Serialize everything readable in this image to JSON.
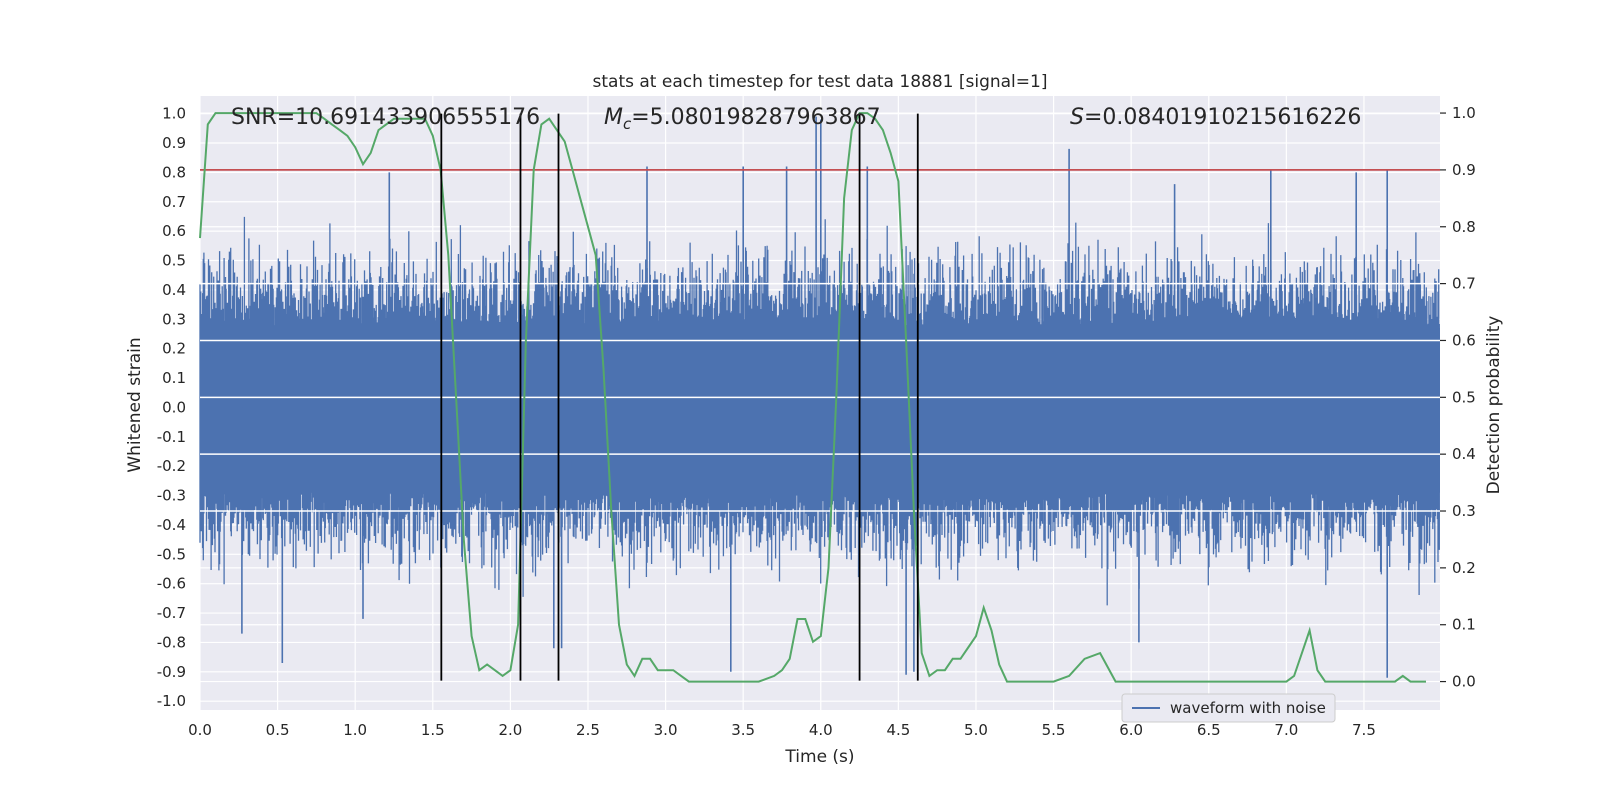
{
  "chart_data": {
    "type": "line",
    "title": "stats at each timestep for test data 18881 [signal=1]",
    "xlabel": "Time (s)",
    "ylabel": "Whitened strain",
    "y2label": "Detection probability",
    "xlim": [
      0.0,
      7.99
    ],
    "ylim": [
      -1.03,
      1.06
    ],
    "y2lim": [
      -0.05,
      1.03
    ],
    "xticks": [
      "0.0",
      "0.5",
      "1.0",
      "1.5",
      "2.0",
      "2.5",
      "3.0",
      "3.5",
      "4.0",
      "4.5",
      "5.0",
      "5.5",
      "6.0",
      "6.5",
      "7.0",
      "7.5"
    ],
    "yticks": [
      "1.0",
      "0.9",
      "0.8",
      "0.7",
      "0.6",
      "0.5",
      "0.4",
      "0.3",
      "0.2",
      "0.1",
      "0.0",
      "-0.1",
      "-0.2",
      "-0.3",
      "-0.4",
      "-0.5",
      "-0.6",
      "-0.7",
      "-0.8",
      "-0.9",
      "-1.0"
    ],
    "y2ticks": [
      "1.0",
      "0.9",
      "0.8",
      "0.7",
      "0.6",
      "0.5",
      "0.4",
      "0.3",
      "0.2",
      "0.1",
      "0.0"
    ],
    "grid": true,
    "background": "#eaeaf2",
    "annotations": {
      "snr": "SNR=10.691433906555176",
      "mc_symbol": "M",
      "mc_sub": "c",
      "mc_value": "=5.080198287963867",
      "s_symbol": "S",
      "s_value": "=0.08401910215616226"
    },
    "legend": {
      "label": "waveform with noise",
      "placement": "lower-right"
    },
    "waveform": {
      "name": "waveform with noise",
      "color": "#4c72b0",
      "note": "dense whitened-strain noise, core band about ±0.25, peaks near ±0.6, spikes to about +1.0 and -0.9",
      "spikes_up": [
        [
          3.97,
          0.99
        ],
        [
          4.0,
          0.98
        ],
        [
          5.6,
          0.88
        ],
        [
          1.22,
          0.8
        ],
        [
          2.88,
          0.82
        ],
        [
          3.5,
          0.82
        ],
        [
          3.78,
          0.82
        ],
        [
          4.3,
          0.82
        ],
        [
          6.9,
          0.81
        ],
        [
          7.65,
          0.81
        ],
        [
          6.28,
          0.76
        ],
        [
          7.45,
          0.8
        ]
      ],
      "spikes_down": [
        [
          0.53,
          -0.87
        ],
        [
          2.28,
          -0.82
        ],
        [
          2.33,
          -0.82
        ],
        [
          3.42,
          -0.9
        ],
        [
          4.55,
          -0.91
        ],
        [
          4.6,
          -0.9
        ],
        [
          7.65,
          -0.92
        ],
        [
          0.27,
          -0.77
        ],
        [
          1.05,
          -0.72
        ],
        [
          6.05,
          -0.8
        ]
      ]
    },
    "threshold": {
      "value": 0.9,
      "axis": "y2",
      "color": "#c44e52"
    },
    "probability": {
      "name": "detection probability",
      "color": "#55a868",
      "x": [
        0.0,
        0.05,
        0.1,
        0.15,
        0.2,
        0.3,
        0.4,
        0.5,
        0.6,
        0.7,
        0.75,
        0.8,
        0.85,
        0.9,
        0.95,
        1.0,
        1.05,
        1.1,
        1.15,
        1.2,
        1.25,
        1.3,
        1.35,
        1.4,
        1.45,
        1.5,
        1.55,
        1.6,
        1.65,
        1.7,
        1.75,
        1.8,
        1.85,
        1.9,
        1.95,
        2.0,
        2.05,
        2.1,
        2.15,
        2.2,
        2.25,
        2.3,
        2.35,
        2.4,
        2.45,
        2.5,
        2.55,
        2.6,
        2.65,
        2.7,
        2.75,
        2.8,
        2.85,
        2.9,
        2.95,
        3.0,
        3.05,
        3.1,
        3.15,
        3.2,
        3.25,
        3.3,
        3.4,
        3.5,
        3.6,
        3.7,
        3.75,
        3.8,
        3.85,
        3.9,
        3.95,
        4.0,
        4.05,
        4.1,
        4.15,
        4.2,
        4.25,
        4.3,
        4.35,
        4.4,
        4.45,
        4.5,
        4.55,
        4.6,
        4.65,
        4.7,
        4.75,
        4.8,
        4.85,
        4.9,
        4.95,
        5.0,
        5.05,
        5.1,
        5.15,
        5.2,
        5.25,
        5.3,
        5.35,
        5.4,
        5.45,
        5.5,
        5.6,
        5.7,
        5.8,
        5.9,
        6.0,
        6.05,
        6.1,
        6.15,
        6.2,
        6.25,
        6.3,
        6.4,
        6.5,
        6.6,
        6.7,
        6.8,
        6.9,
        7.0,
        7.05,
        7.1,
        7.15,
        7.2,
        7.25,
        7.3,
        7.4,
        7.5,
        7.6,
        7.65,
        7.7,
        7.75,
        7.8,
        7.85,
        7.9
      ],
      "y": [
        0.78,
        0.98,
        1.0,
        1.0,
        1.0,
        1.0,
        1.0,
        1.0,
        1.0,
        1.0,
        1.0,
        0.99,
        0.98,
        0.97,
        0.96,
        0.94,
        0.91,
        0.93,
        0.97,
        0.98,
        0.99,
        0.99,
        0.99,
        0.99,
        0.99,
        0.96,
        0.9,
        0.75,
        0.5,
        0.25,
        0.08,
        0.02,
        0.03,
        0.02,
        0.01,
        0.02,
        0.1,
        0.6,
        0.9,
        0.98,
        0.99,
        0.97,
        0.95,
        0.9,
        0.85,
        0.8,
        0.75,
        0.55,
        0.3,
        0.1,
        0.03,
        0.01,
        0.04,
        0.04,
        0.02,
        0.02,
        0.02,
        0.01,
        0.0,
        0.0,
        0.0,
        0.0,
        0.0,
        0.0,
        0.0,
        0.01,
        0.02,
        0.04,
        0.11,
        0.11,
        0.07,
        0.08,
        0.2,
        0.5,
        0.85,
        0.97,
        1.0,
        1.0,
        0.99,
        0.97,
        0.93,
        0.88,
        0.6,
        0.3,
        0.05,
        0.01,
        0.02,
        0.02,
        0.04,
        0.04,
        0.06,
        0.08,
        0.13,
        0.09,
        0.03,
        0.0,
        0.0,
        0.0,
        0.0,
        0.0,
        0.0,
        0.0,
        0.01,
        0.04,
        0.05,
        0.0,
        0.0,
        0.0,
        0.0,
        0.0,
        0.0,
        0.0,
        0.0,
        0.0,
        0.0,
        0.0,
        0.0,
        0.0,
        0.0,
        0.0,
        0.01,
        0.05,
        0.09,
        0.02,
        0.0,
        0.0,
        0.0,
        0.0,
        0.0,
        0.0,
        0.0,
        0.01,
        0.0,
        0.0,
        0.0
      ]
    },
    "vlines": [
      1.555,
      2.065,
      2.31,
      4.25,
      4.625
    ],
    "vline_range": [
      -0.93,
      1.0
    ],
    "vline_color": "#000000"
  }
}
